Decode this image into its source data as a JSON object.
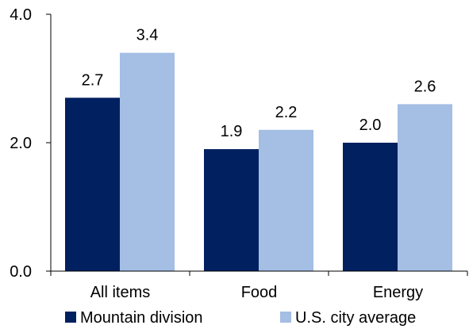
{
  "chart_data": {
    "type": "bar",
    "categories": [
      "All items",
      "Food",
      "Energy"
    ],
    "series": [
      {
        "name": "Mountain division",
        "values": [
          2.7,
          1.9,
          2.0
        ],
        "color": "#002060"
      },
      {
        "name": "U.S. city average",
        "values": [
          3.4,
          2.2,
          2.6
        ],
        "color": "#A4BEE4"
      }
    ],
    "data_labels": [
      [
        "2.7",
        "1.9",
        "2.0"
      ],
      [
        "3.4",
        "2.2",
        "2.6"
      ]
    ],
    "y_ticks": [
      0,
      2,
      4
    ],
    "y_tick_labels": [
      "0.0",
      "2.0",
      "4.0"
    ],
    "ylim": [
      0,
      4
    ],
    "grid": false,
    "legend_position": "bottom",
    "title": "",
    "xlabel": "",
    "ylabel": ""
  }
}
